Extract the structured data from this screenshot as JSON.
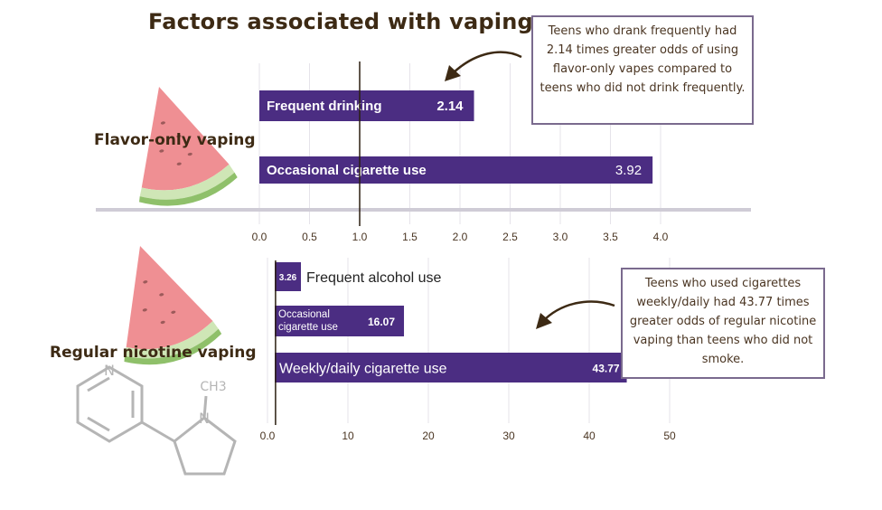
{
  "title": "Factors associated with vaping",
  "colors": {
    "bar": "#4b2d82",
    "text_dark": "#3d2a14",
    "grid": "#e6e3ea",
    "callout_border": "#7a6a8e"
  },
  "icons": [
    "watermelon-slice-icon",
    "nicotine-molecule-icon",
    "curved-arrow-icon"
  ],
  "chart_data": [
    {
      "type": "bar",
      "orientation": "horizontal",
      "title": "Flavor-only vaping",
      "categories": [
        "Frequent drinking",
        "Occasional cigarette use"
      ],
      "values": [
        2.14,
        3.92
      ],
      "value_labels": [
        "2.14",
        "3.92"
      ],
      "xlim": [
        0,
        4
      ],
      "ticks": [
        "0.0",
        "0.5",
        "1.0",
        "1.5",
        "2.0",
        "2.5",
        "3.0",
        "3.5",
        "4.0"
      ],
      "tick_values": [
        0,
        0.5,
        1,
        1.5,
        2,
        2.5,
        3,
        3.5,
        4
      ],
      "reference_line": 1.0,
      "grid": true,
      "annotation": "Teens who drank frequently had 2.14 times greater odds of using flavor-only vapes compared to teens who did not drink frequently."
    },
    {
      "type": "bar",
      "orientation": "horizontal",
      "title": "Regular nicotine vaping",
      "categories": [
        "Frequent alcohol use",
        "Occasional cigarette use",
        "Weekly/daily cigarette use"
      ],
      "categories_display": [
        "Frequent alcohol use",
        [
          "Occasional",
          "cigarette use"
        ],
        "Weekly/daily cigarette use"
      ],
      "values": [
        3.26,
        16.07,
        43.77
      ],
      "value_labels": [
        "3.26",
        "16.07",
        "43.77"
      ],
      "xlim": [
        0,
        50
      ],
      "ticks": [
        "0.0",
        "10",
        "20",
        "30",
        "40",
        "50"
      ],
      "tick_values": [
        0,
        10,
        20,
        30,
        40,
        50
      ],
      "reference_line": 1.0,
      "grid": true,
      "annotation": "Teens who used cigarettes weekly/daily had 43.77 times greater odds of regular nicotine vaping than teens who did not smoke."
    }
  ],
  "molecule_label": "CH3"
}
